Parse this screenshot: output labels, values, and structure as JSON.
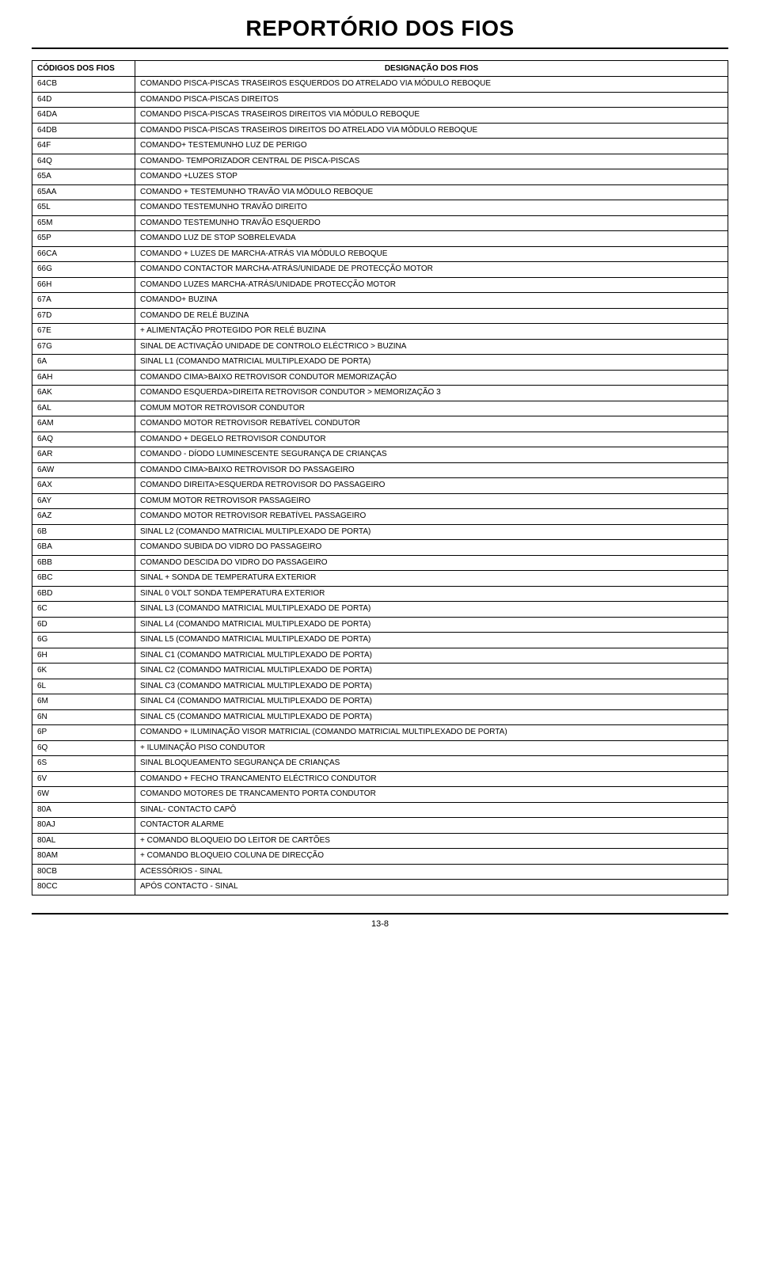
{
  "title": "REPORTÓRIO DOS FIOS",
  "headers": {
    "code": "CÓDIGOS DOS FIOS",
    "desc": "DESIGNAÇÃO DOS FIOS"
  },
  "rows": [
    {
      "code": "64CB",
      "desc": "COMANDO PISCA-PISCAS TRASEIROS ESQUERDOS DO ATRELADO VIA MÓDULO REBOQUE"
    },
    {
      "code": "64D",
      "desc": "COMANDO PISCA-PISCAS DIREITOS"
    },
    {
      "code": "64DA",
      "desc": "COMANDO PISCA-PISCAS TRASEIROS DIREITOS VIA MÓDULO REBOQUE"
    },
    {
      "code": "64DB",
      "desc": "COMANDO PISCA-PISCAS TRASEIROS DIREITOS DO ATRELADO VIA MÓDULO REBOQUE"
    },
    {
      "code": "64F",
      "desc": "COMANDO+ TESTEMUNHO LUZ DE PERIGO"
    },
    {
      "code": "64Q",
      "desc": "COMANDO- TEMPORIZADOR CENTRAL DE PISCA-PISCAS"
    },
    {
      "code": "65A",
      "desc": "COMANDO +LUZES STOP"
    },
    {
      "code": "65AA",
      "desc": "COMANDO + TESTEMUNHO TRAVÃO VIA MÓDULO REBOQUE"
    },
    {
      "code": "65L",
      "desc": "COMANDO TESTEMUNHO TRAVÃO DIREITO"
    },
    {
      "code": "65M",
      "desc": "COMANDO TESTEMUNHO TRAVÃO ESQUERDO"
    },
    {
      "code": "65P",
      "desc": "COMANDO LUZ DE STOP SOBRELEVADA"
    },
    {
      "code": "66CA",
      "desc": "COMANDO + LUZES DE MARCHA-ATRÁS VIA MÓDULO REBOQUE"
    },
    {
      "code": "66G",
      "desc": "COMANDO CONTACTOR MARCHA-ATRÁS/UNIDADE DE PROTECÇÃO MOTOR"
    },
    {
      "code": "66H",
      "desc": "COMANDO LUZES MARCHA-ATRÁS/UNIDADE PROTECÇÃO MOTOR"
    },
    {
      "code": "67A",
      "desc": "COMANDO+ BUZINA"
    },
    {
      "code": "67D",
      "desc": "COMANDO DE RELÉ BUZINA"
    },
    {
      "code": "67E",
      "desc": "+ ALIMENTAÇÃO PROTEGIDO POR RELÉ BUZINA"
    },
    {
      "code": "67G",
      "desc": "SINAL DE ACTIVAÇÃO UNIDADE DE CONTROLO ELÉCTRICO > BUZINA"
    },
    {
      "code": "6A",
      "desc": "SINAL L1 (COMANDO MATRICIAL MULTIPLEXADO DE PORTA)"
    },
    {
      "code": "6AH",
      "desc": "COMANDO CIMA>BAIXO RETROVISOR CONDUTOR MEMORIZAÇÃO"
    },
    {
      "code": "6AK",
      "desc": "COMANDO ESQUERDA>DIREITA RETROVISOR CONDUTOR > MEMORIZAÇÃO 3"
    },
    {
      "code": "6AL",
      "desc": "COMUM MOTOR RETROVISOR CONDUTOR"
    },
    {
      "code": "6AM",
      "desc": "COMANDO MOTOR RETROVISOR REBATÍVEL CONDUTOR"
    },
    {
      "code": "6AQ",
      "desc": "COMANDO + DEGELO RETROVISOR CONDUTOR"
    },
    {
      "code": "6AR",
      "desc": "COMANDO - DÍODO LUMINESCENTE SEGURANÇA DE CRIANÇAS"
    },
    {
      "code": "6AW",
      "desc": "COMANDO CIMA>BAIXO RETROVISOR DO PASSAGEIRO"
    },
    {
      "code": "6AX",
      "desc": "COMANDO DIREITA>ESQUERDA RETROVISOR DO PASSAGEIRO"
    },
    {
      "code": "6AY",
      "desc": "COMUM MOTOR RETROVISOR PASSAGEIRO"
    },
    {
      "code": "6AZ",
      "desc": "COMANDO MOTOR RETROVISOR REBATÍVEL PASSAGEIRO"
    },
    {
      "code": "6B",
      "desc": "SINAL L2 (COMANDO MATRICIAL MULTIPLEXADO DE PORTA)"
    },
    {
      "code": "6BA",
      "desc": "COMANDO SUBIDA DO VIDRO DO PASSAGEIRO"
    },
    {
      "code": "6BB",
      "desc": "COMANDO DESCIDA DO VIDRO DO PASSAGEIRO"
    },
    {
      "code": "6BC",
      "desc": "SINAL + SONDA DE TEMPERATURA EXTERIOR"
    },
    {
      "code": "6BD",
      "desc": "SINAL 0 VOLT SONDA TEMPERATURA EXTERIOR"
    },
    {
      "code": "6C",
      "desc": "SINAL L3 (COMANDO MATRICIAL MULTIPLEXADO DE PORTA)"
    },
    {
      "code": "6D",
      "desc": "SINAL L4 (COMANDO MATRICIAL MULTIPLEXADO DE PORTA)"
    },
    {
      "code": "6G",
      "desc": "SINAL L5 (COMANDO MATRICIAL MULTIPLEXADO DE PORTA)"
    },
    {
      "code": "6H",
      "desc": "SINAL C1 (COMANDO MATRICIAL MULTIPLEXADO DE PORTA)"
    },
    {
      "code": "6K",
      "desc": "SINAL C2 (COMANDO MATRICIAL MULTIPLEXADO DE PORTA)"
    },
    {
      "code": "6L",
      "desc": "SINAL C3 (COMANDO MATRICIAL MULTIPLEXADO DE PORTA)"
    },
    {
      "code": "6M",
      "desc": "SINAL C4 (COMANDO MATRICIAL MULTIPLEXADO DE PORTA)"
    },
    {
      "code": "6N",
      "desc": "SINAL C5 (COMANDO MATRICIAL MULTIPLEXADO DE PORTA)"
    },
    {
      "code": "6P",
      "desc": "COMANDO + ILUMINAÇÃO VISOR MATRICIAL (COMANDO MATRICIAL MULTIPLEXADO DE PORTA)"
    },
    {
      "code": "6Q",
      "desc": "+ ILUMINAÇÃO PISO CONDUTOR"
    },
    {
      "code": "6S",
      "desc": "SINAL BLOQUEAMENTO SEGURANÇA DE CRIANÇAS"
    },
    {
      "code": "6V",
      "desc": "COMANDO + FECHO TRANCAMENTO ELÉCTRICO CONDUTOR"
    },
    {
      "code": "6W",
      "desc": "COMANDO MOTORES DE TRANCAMENTO PORTA CONDUTOR"
    },
    {
      "code": "80A",
      "desc": "SINAL- CONTACTO CAPÔ"
    },
    {
      "code": "80AJ",
      "desc": "CONTACTOR ALARME"
    },
    {
      "code": "80AL",
      "desc": "+ COMANDO BLOQUEIO DO LEITOR DE CARTÕES"
    },
    {
      "code": "80AM",
      "desc": "+ COMANDO BLOQUEIO COLUNA DE DIRECÇÃO"
    },
    {
      "code": "80CB",
      "desc": "ACESSÓRIOS - SINAL"
    },
    {
      "code": "80CC",
      "desc": "APÓS CONTACTO - SINAL"
    }
  ],
  "pageNumber": "13-8"
}
